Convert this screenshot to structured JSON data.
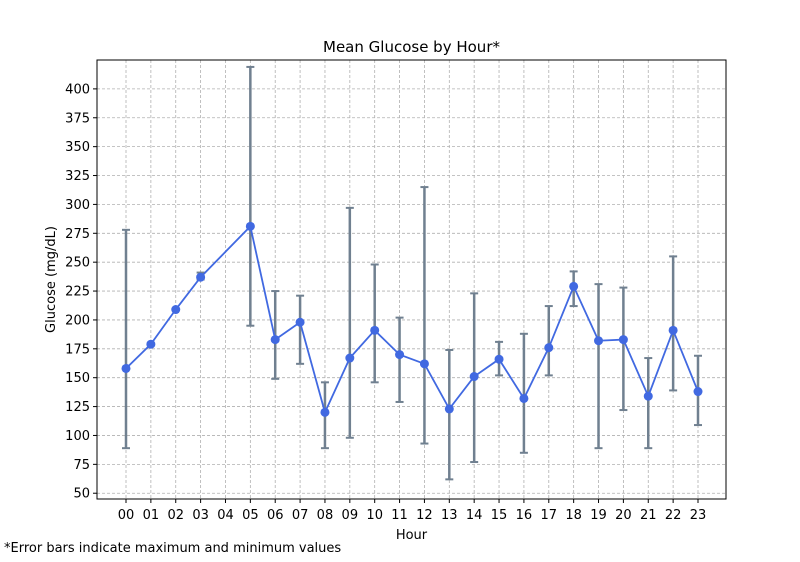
{
  "chart_data": {
    "type": "line",
    "title": "Mean Glucose by Hour*",
    "xlabel": "Hour",
    "ylabel": "Glucose (mg/dL)",
    "ylim": [
      45,
      425
    ],
    "yticks": [
      50,
      75,
      100,
      125,
      150,
      175,
      200,
      225,
      250,
      275,
      300,
      325,
      350,
      375,
      400
    ],
    "grid": true,
    "categories": [
      "00",
      "01",
      "02",
      "03",
      "04",
      "05",
      "06",
      "07",
      "08",
      "09",
      "10",
      "11",
      "12",
      "13",
      "14",
      "15",
      "16",
      "17",
      "18",
      "19",
      "20",
      "21",
      "22",
      "23"
    ],
    "series": [
      {
        "points": [
          {
            "hour": "00",
            "mean": 158,
            "min": 89,
            "max": 278
          },
          {
            "hour": "01",
            "mean": 179,
            "min": null,
            "max": null
          },
          {
            "hour": "02",
            "mean": 209,
            "min": null,
            "max": null
          },
          {
            "hour": "03",
            "mean": 237,
            "min": 235,
            "max": 241
          },
          {
            "hour": "05",
            "mean": 281,
            "min": 195,
            "max": 419
          },
          {
            "hour": "06",
            "mean": 183,
            "min": 149,
            "max": 225
          },
          {
            "hour": "07",
            "mean": 198,
            "min": 162,
            "max": 221
          },
          {
            "hour": "08",
            "mean": 120,
            "min": 89,
            "max": 146
          },
          {
            "hour": "09",
            "mean": 167,
            "min": 98,
            "max": 297
          },
          {
            "hour": "10",
            "mean": 191,
            "min": 146,
            "max": 248
          },
          {
            "hour": "11",
            "mean": 170,
            "min": 129,
            "max": 202
          },
          {
            "hour": "12",
            "mean": 162,
            "min": 93,
            "max": 315
          },
          {
            "hour": "13",
            "mean": 123,
            "min": 62,
            "max": 174
          },
          {
            "hour": "14",
            "mean": 151,
            "min": 77,
            "max": 223
          },
          {
            "hour": "15",
            "mean": 166,
            "min": 152,
            "max": 181
          },
          {
            "hour": "16",
            "mean": 132,
            "min": 85,
            "max": 188
          },
          {
            "hour": "17",
            "mean": 176,
            "min": 152,
            "max": 212
          },
          {
            "hour": "18",
            "mean": 229,
            "min": 212,
            "max": 242
          },
          {
            "hour": "19",
            "mean": 182,
            "min": 89,
            "max": 231
          },
          {
            "hour": "20",
            "mean": 183,
            "min": 122,
            "max": 228
          },
          {
            "hour": "21",
            "mean": 134,
            "min": 89,
            "max": 167
          },
          {
            "hour": "22",
            "mean": 191,
            "min": 139,
            "max": 255
          },
          {
            "hour": "23",
            "mean": 138,
            "min": 109,
            "max": 169
          }
        ]
      }
    ],
    "colors": {
      "line": "#4169e1",
      "errorbar": "#708090",
      "grid": "#b0b0b0",
      "axis": "#000000"
    }
  },
  "footnote": "*Error bars indicate maximum and minimum values"
}
